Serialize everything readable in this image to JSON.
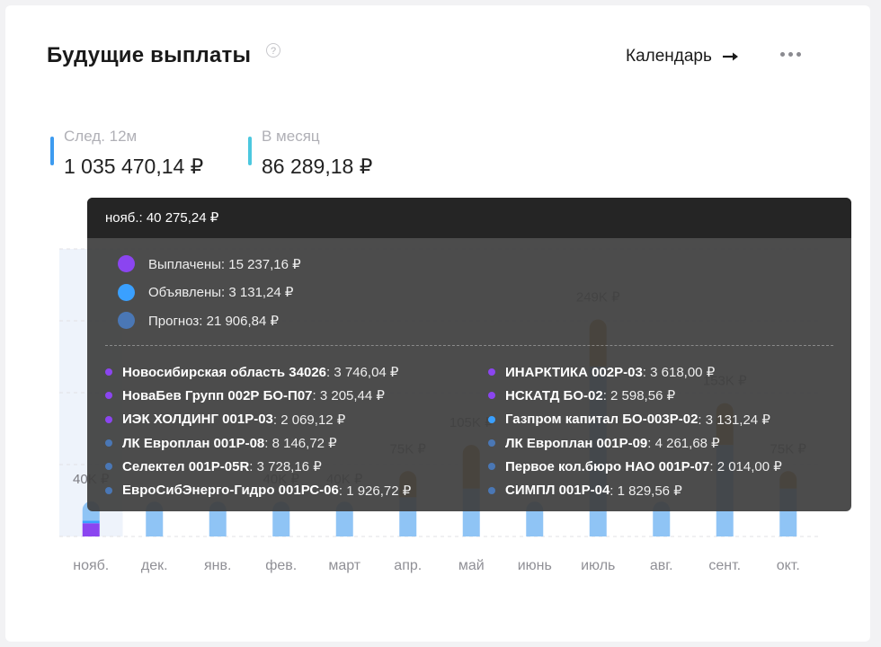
{
  "header": {
    "title": "Будущие выплаты",
    "help_icon": "question-circle-icon",
    "help_glyph": "?",
    "calendar_label": "Календарь"
  },
  "stats": [
    {
      "label": "След. 12м",
      "value": "1 035 470,14 ₽",
      "color": "#3d9bf0"
    },
    {
      "label": "В месяц",
      "value": "86 289,18 ₽",
      "color": "#4cc8df"
    }
  ],
  "chart_data": {
    "type": "bar",
    "stacked": true,
    "categories": [
      "нояб.",
      "дек.",
      "янв.",
      "фев.",
      "март",
      "апр.",
      "май",
      "июнь",
      "июль",
      "авг.",
      "сент.",
      "окт."
    ],
    "value_labels": [
      "40K ₽",
      "",
      "",
      "40K ₽",
      "40K ₽",
      "75K ₽",
      "105K ₽",
      "",
      "249K ₽",
      "",
      "153K ₽",
      "75K ₽"
    ],
    "ylim": [
      0,
      330000
    ],
    "grid": true,
    "highlighted_category": "нояб.",
    "series": [
      {
        "name": "Выплачены",
        "color": "#8b45f0",
        "values": [
          15237.16,
          0,
          0,
          0,
          0,
          0,
          0,
          0,
          0,
          0,
          0,
          0
        ]
      },
      {
        "name": "Объявлены",
        "color": "#3aa0ff",
        "values": [
          3131.24,
          0,
          0,
          0,
          0,
          0,
          0,
          0,
          0,
          0,
          0,
          0
        ]
      },
      {
        "name": "Прогноз",
        "color": "#8fc4f5",
        "values": [
          21906.84,
          40000,
          40000,
          40000,
          40000,
          45000,
          55000,
          40000,
          195000,
          40000,
          105000,
          55000
        ]
      },
      {
        "name": "",
        "color": "#c58a3e",
        "values": [
          0,
          0,
          0,
          0,
          0,
          30000,
          50000,
          0,
          54000,
          0,
          48000,
          20000
        ]
      }
    ]
  },
  "tooltip": {
    "header": "нояб.: 40 275,24 ₽",
    "summary": [
      {
        "text": "Выплачены: 15 237,16 ₽",
        "color": "#8b45f0"
      },
      {
        "text": "Объявлены: 3 131,24 ₽",
        "color": "#3aa0ff"
      },
      {
        "text": "Прогноз: 21 906,84 ₽",
        "color": "#4a77b5"
      }
    ],
    "left": [
      {
        "name": "Новосибирская область 34026",
        "amount": ": 3 746,04 ₽",
        "color": "#8b45f0"
      },
      {
        "name": "НоваБев Групп 002Р БО-П07",
        "amount": ": 3 205,44 ₽",
        "color": "#8b45f0"
      },
      {
        "name": "ИЭК ХОЛДИНГ 001P-03",
        "amount": ": 2 069,12 ₽",
        "color": "#8b45f0"
      },
      {
        "name": "ЛК Европлан 001Р-08",
        "amount": ": 8 146,72 ₽",
        "color": "#4a77b5"
      },
      {
        "name": "Селектел 001P-05R",
        "amount": ": 3 728,16 ₽",
        "color": "#4a77b5"
      },
      {
        "name": "ЕвроСибЭнерго-Гидро 001РС-06",
        "amount": ": 1 926,72 ₽",
        "color": "#4a77b5"
      }
    ],
    "right": [
      {
        "name": "ИНАРКТИКА 002P-03",
        "amount": ": 3 618,00 ₽",
        "color": "#8b45f0"
      },
      {
        "name": "НСКАТД БО-02",
        "amount": ": 2 598,56 ₽",
        "color": "#8b45f0"
      },
      {
        "name": "Газпром капитал БО-003Р-02",
        "amount": ": 3 131,24 ₽",
        "color": "#3aa0ff"
      },
      {
        "name": "ЛК Европлан 001Р-09",
        "amount": ": 4 261,68 ₽",
        "color": "#4a77b5"
      },
      {
        "name": "Первое кол.бюро НАО 001P-07",
        "amount": ": 2 014,00 ₽",
        "color": "#4a77b5"
      },
      {
        "name": "СИМПЛ 001P-04",
        "amount": ": 1 829,56 ₽",
        "color": "#4a77b5"
      }
    ]
  }
}
